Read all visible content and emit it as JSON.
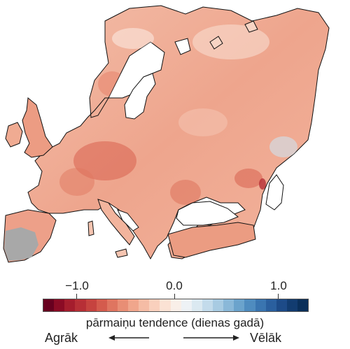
{
  "map": {
    "regions": [
      "Europe"
    ],
    "no_data_color": "#a8a8a8",
    "sea_color": "#ffffff",
    "coast_color": "#000000"
  },
  "colorbar": {
    "ticks": [
      "−1.0",
      "0.0",
      "1.0"
    ],
    "tick_values": [
      -1.0,
      0.0,
      1.0
    ],
    "range": [
      -1.5,
      1.5
    ],
    "colors": [
      "#67001f",
      "#8b0b25",
      "#a51d2d",
      "#b72f36",
      "#c6433f",
      "#d45b4d",
      "#df7560",
      "#e88e75",
      "#f0a68c",
      "#f5bca5",
      "#f9d0bd",
      "#fbe2d4",
      "#f9efe8",
      "#eef2f5",
      "#dbe9f1",
      "#c3dbeb",
      "#a8cbe2",
      "#8ab8d8",
      "#6ba3cc",
      "#4f8cbf",
      "#3a75b0",
      "#2a5f9e",
      "#1d4b88",
      "#123c70",
      "#0a2f5a"
    ],
    "title": "pārmaiņu tendence (dienas gadā)",
    "left_label": "Agrāk",
    "right_label": "Vēlāk",
    "left_arrow_icon": "arrow-left-icon",
    "right_arrow_icon": "arrow-right-icon"
  }
}
